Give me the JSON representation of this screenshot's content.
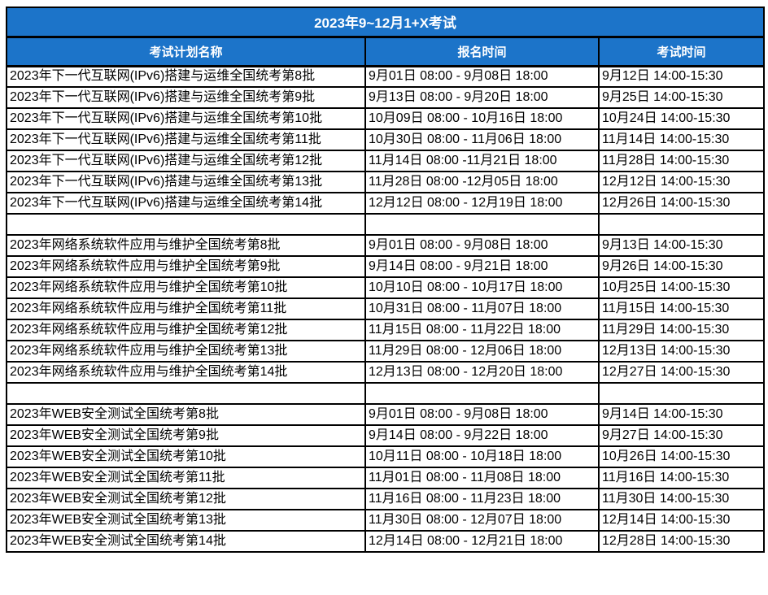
{
  "title": "2023年9~12月1+X考试",
  "columns": [
    "考试计划名称",
    "报名时间",
    "考试时间"
  ],
  "colors": {
    "header_blue": "#1C74C9",
    "header_text": "#FFFFFF",
    "body_text": "#000000",
    "border": "#000000"
  },
  "rows": [
    {
      "plan": "2023年下一代互联网(IPv6)搭建与运维全国统考第8批",
      "signup": "9月01日 08:00 - 9月08日 18:00",
      "exam": "9月12日 14:00-15:30"
    },
    {
      "plan": "2023年下一代互联网(IPv6)搭建与运维全国统考第9批",
      "signup": "9月13日 08:00 - 9月20日 18:00",
      "exam": "9月25日 14:00-15:30"
    },
    {
      "plan": "2023年下一代互联网(IPv6)搭建与运维全国统考第10批",
      "signup": "10月09日 08:00 - 10月16日 18:00",
      "exam": "10月24日 14:00-15:30"
    },
    {
      "plan": "2023年下一代互联网(IPv6)搭建与运维全国统考第11批",
      "signup": "10月30日 08:00 - 11月06日 18:00",
      "exam": "11月14日 14:00-15:30"
    },
    {
      "plan": "2023年下一代互联网(IPv6)搭建与运维全国统考第12批",
      "signup": "11月14日 08:00 -11月21日 18:00",
      "exam": "11月28日 14:00-15:30"
    },
    {
      "plan": "2023年下一代互联网(IPv6)搭建与运维全国统考第13批",
      "signup": "11月28日 08:00 -12月05日 18:00",
      "exam": "12月12日 14:00-15:30"
    },
    {
      "plan": "2023年下一代互联网(IPv6)搭建与运维全国统考第14批",
      "signup": "12月12日 08:00 - 12月19日 18:00",
      "exam": "12月26日 14:00-15:30"
    },
    {
      "plan": "",
      "signup": "",
      "exam": ""
    },
    {
      "plan": "2023年网络系统软件应用与维护全国统考第8批",
      "signup": "9月01日 08:00 - 9月08日 18:00",
      "exam": "9月13日 14:00-15:30"
    },
    {
      "plan": "2023年网络系统软件应用与维护全国统考第9批",
      "signup": "9月14日 08:00 - 9月21日 18:00",
      "exam": "9月26日 14:00-15:30"
    },
    {
      "plan": "2023年网络系统软件应用与维护全国统考第10批",
      "signup": "10月10日 08:00 - 10月17日 18:00",
      "exam": "10月25日 14:00-15:30"
    },
    {
      "plan": "2023年网络系统软件应用与维护全国统考第11批",
      "signup": "10月31日 08:00 - 11月07日 18:00",
      "exam": "11月15日 14:00-15:30"
    },
    {
      "plan": "2023年网络系统软件应用与维护全国统考第12批",
      "signup": "11月15日 08:00 - 11月22日 18:00",
      "exam": "11月29日 14:00-15:30"
    },
    {
      "plan": "2023年网络系统软件应用与维护全国统考第13批",
      "signup": "11月29日 08:00 - 12月06日 18:00",
      "exam": "12月13日 14:00-15:30"
    },
    {
      "plan": "2023年网络系统软件应用与维护全国统考第14批",
      "signup": "12月13日 08:00 - 12月20日 18:00",
      "exam": "12月27日 14:00-15:30"
    },
    {
      "plan": "",
      "signup": "",
      "exam": ""
    },
    {
      "plan": "2023年WEB安全测试全国统考第8批",
      "signup": "9月01日 08:00 - 9月08日 18:00",
      "exam": "9月14日 14:00-15:30"
    },
    {
      "plan": "2023年WEB安全测试全国统考第9批",
      "signup": "9月14日 08:00 - 9月22日 18:00",
      "exam": "9月27日 14:00-15:30"
    },
    {
      "plan": "2023年WEB安全测试全国统考第10批",
      "signup": "10月11日 08:00 - 10月18日 18:00",
      "exam": "10月26日 14:00-15:30"
    },
    {
      "plan": "2023年WEB安全测试全国统考第11批",
      "signup": "11月01日 08:00 - 11月08日 18:00",
      "exam": "11月16日 14:00-15:30"
    },
    {
      "plan": "2023年WEB安全测试全国统考第12批",
      "signup": "11月16日 08:00 - 11月23日 18:00",
      "exam": "11月30日 14:00-15:30"
    },
    {
      "plan": "2023年WEB安全测试全国统考第13批",
      "signup": "11月30日 08:00 - 12月07日 18:00",
      "exam": "12月14日 14:00-15:30"
    },
    {
      "plan": "2023年WEB安全测试全国统考第14批",
      "signup": "12月14日 08:00 - 12月21日 18:00",
      "exam": "12月28日 14:00-15:30"
    }
  ]
}
